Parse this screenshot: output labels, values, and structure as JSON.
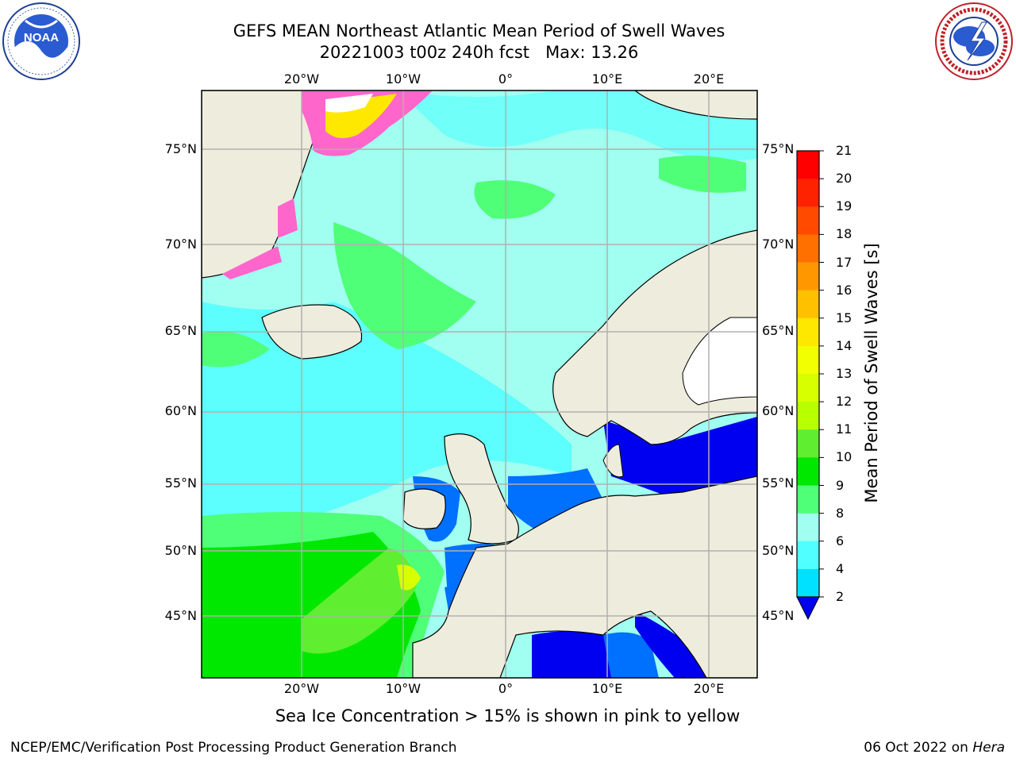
{
  "title": {
    "line1": "GEFS MEAN Northeast Atlantic Mean Period of Swell Waves",
    "line2": "20221003 t00z 240h fcst   Max: 13.26"
  },
  "logos": {
    "left": {
      "icon": "noaa-logo",
      "text": "NOAA",
      "ring_text": "NATIONAL OCEANIC AND ATMOSPHERIC ADMINISTRATION · U.S. DEPARTMENT OF COMMERCE"
    },
    "right": {
      "icon": "nws-logo",
      "ring_text": "NATIONAL WEATHER SERVICE"
    }
  },
  "map": {
    "lon_labels": [
      "20°W",
      "10°W",
      "0°",
      "10°E",
      "20°E"
    ],
    "lat_labels": [
      "75°N",
      "70°N",
      "65°N",
      "60°N",
      "55°N",
      "50°N",
      "45°N"
    ],
    "land_color": "#eeecdc",
    "gridline_color": "#b0b0b0"
  },
  "colorbar": {
    "label": "Mean Period of Swell Waves [s]",
    "ticks": [
      "21",
      "20",
      "19",
      "18",
      "17",
      "16",
      "15",
      "14",
      "13",
      "12",
      "11",
      "10",
      "9",
      "8",
      "6",
      "4",
      "2"
    ],
    "colors": [
      "#ff0000",
      "#ff2200",
      "#ff4a00",
      "#ff7000",
      "#ff9800",
      "#ffc000",
      "#ffe800",
      "#f2ff00",
      "#d8ff00",
      "#b8ff00",
      "#60ee30",
      "#00e800",
      "#50ff78",
      "#a0fff0",
      "#50ffff",
      "#00e0ff",
      "#0070ff",
      "#0000f0"
    ]
  },
  "caption": "Sea Ice Concentration > 15% is shown in pink to yellow",
  "footer": {
    "left": "NCEP/EMC/Verification Post Processing Product Generation Branch",
    "right_date": "06 Oct 2022 on ",
    "right_host": "Hera"
  }
}
